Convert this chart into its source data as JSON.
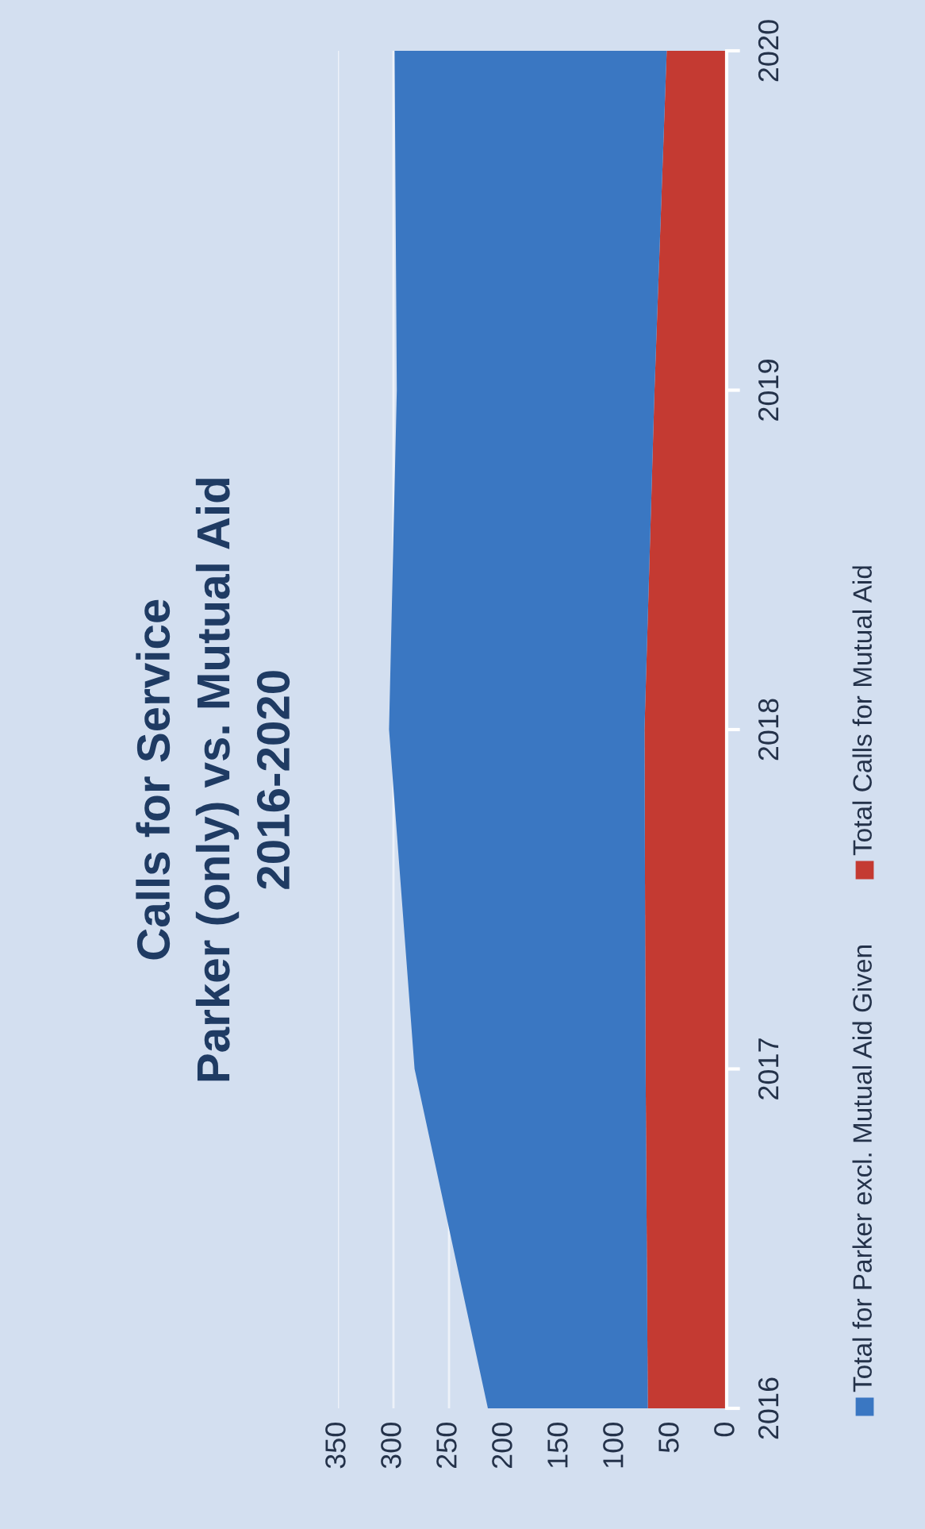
{
  "chart_data": {
    "type": "area",
    "orientation": "horizontal",
    "title": "Calls for Service\nParker (only) vs. Mutual Aid\n2016-2020",
    "categories": [
      "2020",
      "2019",
      "2018",
      "2017",
      "2016"
    ],
    "xlim": [
      350,
      0
    ],
    "xticks": [
      0,
      50,
      100,
      150,
      200,
      250,
      300,
      350
    ],
    "stacked": true,
    "grid": "x",
    "legend": "bottom",
    "series": [
      {
        "name": "Total Calls for Mutual Aid",
        "color": "#c43a32",
        "values": [
          54,
          65,
          74,
          73,
          71
        ]
      },
      {
        "name": "Total for Parker excl. Mutual Aid Given",
        "color": "#3a77c2",
        "values": [
          245,
          232,
          230,
          208,
          144
        ]
      }
    ]
  }
}
